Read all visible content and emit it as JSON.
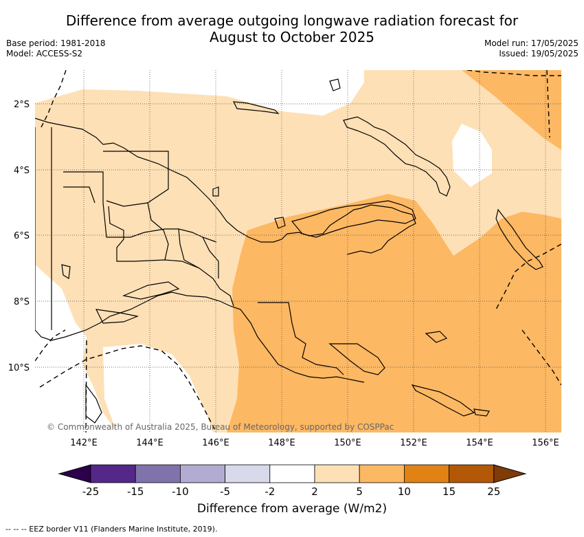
{
  "header": {
    "title_line1": "Difference from average outgoing longwave radiation forecast for",
    "title_line2": "August to October 2025",
    "base_period": "Base period: 1981-2018",
    "model": "Model: ACCESS-S2",
    "model_run": "Model run: 17/05/2025",
    "issued": "Issued: 19/05/2025"
  },
  "map": {
    "lat_labels": [
      "2°S",
      "4°S",
      "6°S",
      "8°S",
      "10°S"
    ],
    "lon_labels": [
      "142°E",
      "144°E",
      "146°E",
      "148°E",
      "150°E",
      "152°E",
      "154°E",
      "156°E"
    ],
    "copyright": "© Commonwealth of Australia 2025, Bureau of Meteorology, supported by COSPPac"
  },
  "legend": {
    "title": "Difference from average (W/m2)",
    "tick_labels": [
      "-25",
      "-15",
      "-10",
      "-5",
      "-2",
      "2",
      "5",
      "10",
      "15",
      "25"
    ],
    "colors": [
      "#2d004b",
      "#542788",
      "#8073ac",
      "#b2abd2",
      "#d8daeb",
      "#ffffff",
      "#fee0b6",
      "#fdb863",
      "#e08214",
      "#b35806",
      "#7f3b08"
    ]
  },
  "footnote": "-- -- -- EEZ border V11 (Flanders Marine Institute, 2019)."
}
